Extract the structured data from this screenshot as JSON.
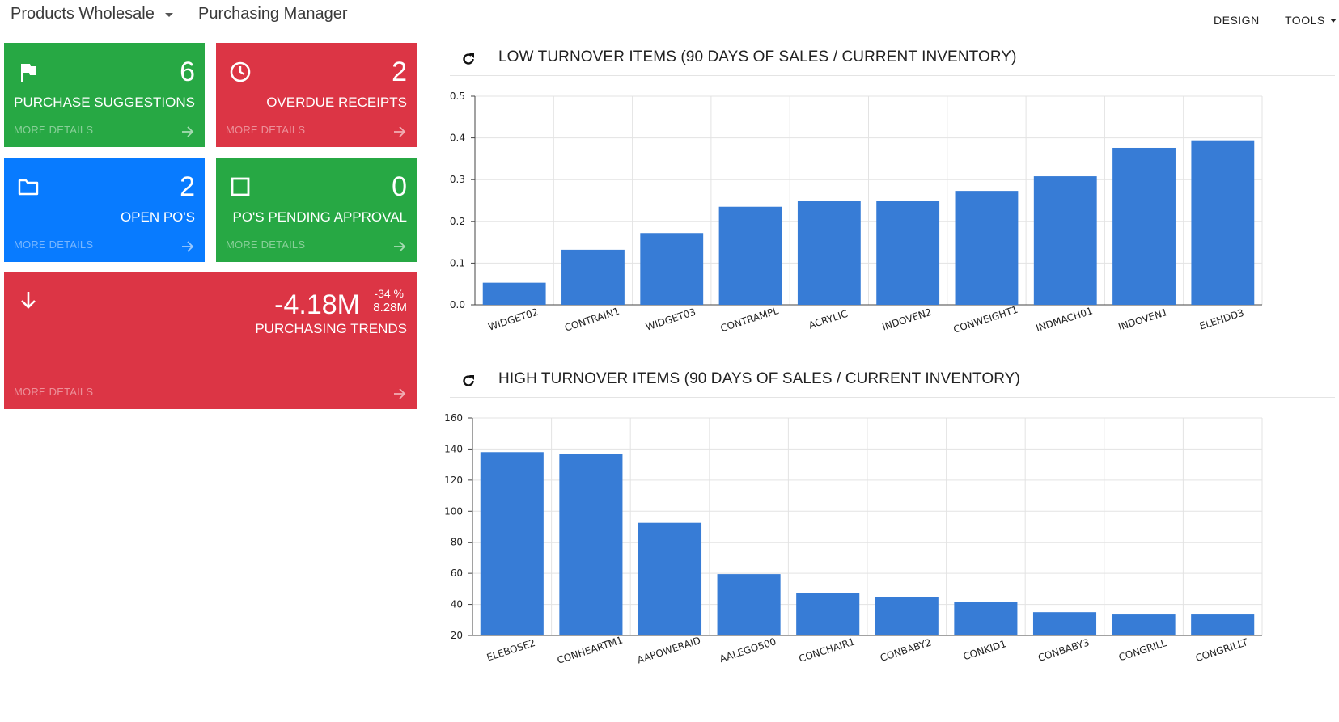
{
  "header": {
    "company": "Products Wholesale",
    "role": "Purchasing Manager",
    "menu": {
      "design": "DESIGN",
      "tools": "TOOLS"
    }
  },
  "tiles": {
    "purchase_suggestions": {
      "value": "6",
      "label": "PURCHASE SUGGESTIONS",
      "more": "MORE DETAILS",
      "icon": "flag-icon",
      "color": "#27a844"
    },
    "overdue_receipts": {
      "value": "2",
      "label": "OVERDUE RECEIPTS",
      "more": "MORE DETAILS",
      "icon": "clock-icon",
      "color": "#dc3545"
    },
    "open_pos": {
      "value": "2",
      "label": "OPEN PO'S",
      "more": "MORE DETAILS",
      "icon": "folder-icon",
      "color": "#087bff"
    },
    "pending_approval": {
      "value": "0",
      "label": "PO'S PENDING APPROVAL",
      "more": "MORE DETAILS",
      "icon": "square-icon",
      "color": "#27a844"
    },
    "purchasing_trends": {
      "value": "-4.18M",
      "percent": "-34 %",
      "previous": "8.28M",
      "label": "PURCHASING TRENDS",
      "more": "MORE DETAILS",
      "icon": "arrow-down-icon",
      "color": "#dc3545"
    }
  },
  "charts": {
    "low": {
      "title": "LOW TURNOVER ITEMS (90 DAYS OF SALES / CURRENT INVENTORY)"
    },
    "high": {
      "title": "HIGH TURNOVER ITEMS (90 DAYS OF SALES / CURRENT INVENTORY)"
    }
  },
  "chart_data": [
    {
      "type": "bar",
      "title": "LOW TURNOVER ITEMS (90 DAYS OF SALES / CURRENT INVENTORY)",
      "categories": [
        "WIDGET02",
        "CONTRAIN1",
        "WIDGET03",
        "CONTRAMPL",
        "ACRYLIC",
        "INDOVEN2",
        "CONWEIGHT1",
        "INDMACH01",
        "INDOVEN1",
        "ELEHDD3"
      ],
      "values": [
        0.053,
        0.132,
        0.172,
        0.235,
        0.25,
        0.25,
        0.273,
        0.308,
        0.376,
        0.394
      ],
      "ylim": [
        0,
        0.5
      ],
      "yticks": [
        "0.0",
        "0.1",
        "0.2",
        "0.3",
        "0.4",
        "0.5"
      ],
      "ytick_values": [
        0,
        0.1,
        0.2,
        0.3,
        0.4,
        0.5
      ],
      "bar_color": "#377cd6",
      "grid": true
    },
    {
      "type": "bar",
      "title": "HIGH TURNOVER ITEMS (90 DAYS OF SALES / CURRENT INVENTORY)",
      "categories": [
        "ELEBOSE2",
        "CONHEARTM1",
        "AAPOWERAID",
        "AALEGO500",
        "CONCHAIR1",
        "CONBABY2",
        "CONKID1",
        "CONBABY3",
        "CONGRILL",
        "CONGRILLT"
      ],
      "values": [
        138,
        137,
        92.5,
        59.5,
        47.5,
        44.5,
        41.5,
        35,
        33.5,
        33.5
      ],
      "ylim": [
        20,
        160
      ],
      "yticks": [
        "20",
        "40",
        "60",
        "80",
        "100",
        "120",
        "140",
        "160"
      ],
      "ytick_values": [
        20,
        40,
        60,
        80,
        100,
        120,
        140,
        160
      ],
      "bar_color": "#377cd6",
      "grid": true
    }
  ]
}
